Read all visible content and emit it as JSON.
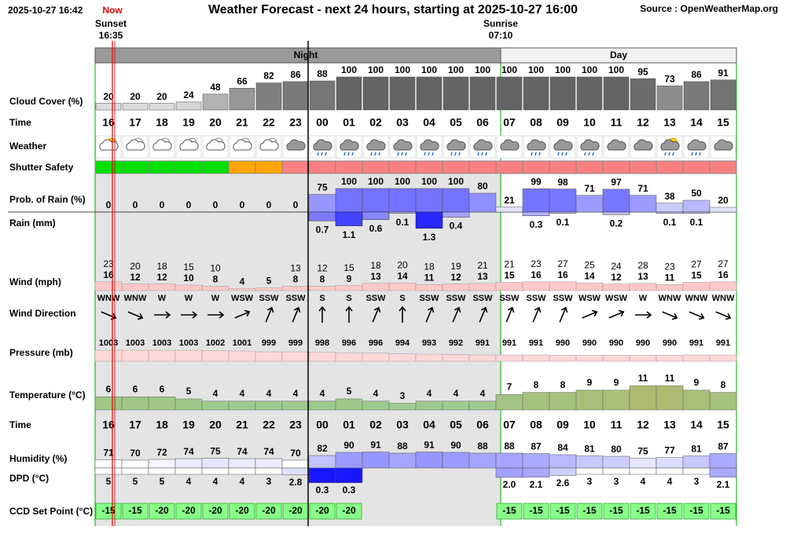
{
  "header": {
    "timestamp": "2025-10-27 16:42",
    "now": "Now",
    "title": "Weather Forecast - next 24 hours, starting at 2025-10-27 16:00",
    "source": "Source : OpenWeatherMap.org"
  },
  "sun": {
    "sunset_label": "Sunset",
    "sunset_time": "16:35",
    "sunrise_label": "Sunrise",
    "sunrise_time": "07:10"
  },
  "periods": [
    {
      "label": "Night"
    },
    {
      "label": "Day"
    }
  ],
  "hours": [
    "16",
    "17",
    "18",
    "19",
    "20",
    "21",
    "22",
    "23",
    "00",
    "01",
    "02",
    "03",
    "04",
    "05",
    "06",
    "07",
    "08",
    "09",
    "10",
    "11",
    "12",
    "13",
    "14",
    "15"
  ],
  "rows": {
    "cloud_cover": {
      "label": "Cloud Cover (%)",
      "values": [
        20,
        20,
        20,
        24,
        48,
        66,
        82,
        86,
        88,
        100,
        100,
        100,
        100,
        100,
        100,
        100,
        100,
        100,
        100,
        100,
        95,
        73,
        86,
        91
      ]
    },
    "time": {
      "label": "Time"
    },
    "weather": {
      "label": "Weather"
    },
    "shutter_safety": {
      "label": "Shutter Safety",
      "colors": [
        "#00e000",
        "#00e000",
        "#00e000",
        "#00e000",
        "#00e000",
        "#ffa500",
        "#ffa500",
        "#f88080",
        "#f88080",
        "#f88080",
        "#f88080",
        "#f88080",
        "#f88080",
        "#f88080",
        "#f88080",
        "#f88080",
        "#f88080",
        "#f88080",
        "#f88080",
        "#f88080",
        "#f88080",
        "#f88080",
        "#f88080",
        "#f88080"
      ]
    },
    "rain_probability": {
      "label": "Prob. of Rain (%)",
      "values": [
        0,
        0,
        0,
        0,
        0,
        0,
        0,
        0,
        75,
        100,
        100,
        100,
        100,
        100,
        80,
        21,
        99,
        98,
        71,
        97,
        71,
        38,
        50,
        20
      ]
    },
    "rain": {
      "label": "Rain (mm)",
      "values": [
        null,
        null,
        null,
        null,
        null,
        null,
        null,
        null,
        0.7,
        1.1,
        0.6,
        0.1,
        1.3,
        0.4,
        null,
        null,
        0.3,
        0.1,
        null,
        0.2,
        null,
        0.1,
        0.1,
        null
      ]
    },
    "wind": {
      "label": "Wind (mph)",
      "gusts": [
        23,
        20,
        18,
        15,
        10,
        null,
        null,
        13,
        12,
        15,
        18,
        20,
        18,
        19,
        21,
        21,
        23,
        27,
        25,
        24,
        28,
        23,
        27,
        27
      ],
      "speeds": [
        16,
        12,
        12,
        10,
        8,
        4,
        5,
        8,
        8,
        9,
        13,
        14,
        11,
        12,
        13,
        15,
        16,
        16,
        14,
        12,
        13,
        11,
        15,
        16
      ]
    },
    "wind_direction": {
      "label": "Wind Direction",
      "values": [
        "WNW",
        "WNW",
        "W",
        "W",
        "W",
        "WSW",
        "SSW",
        "SSW",
        "S",
        "S",
        "SSW",
        "S",
        "SSW",
        "SSW",
        "SSW",
        "SSW",
        "SSW",
        "SSW",
        "WSW",
        "WSW",
        "W",
        "WNW",
        "WNW",
        "WNW"
      ]
    },
    "pressure": {
      "label": "Pressure (mb)",
      "values": [
        1003,
        1003,
        1003,
        1003,
        1002,
        1001,
        999,
        999,
        998,
        996,
        996,
        994,
        993,
        992,
        991,
        991,
        991,
        990,
        990,
        990,
        990,
        990,
        991,
        991
      ]
    },
    "temperature": {
      "label": "Temperature (°C)",
      "values": [
        6,
        6,
        6,
        5,
        4,
        4,
        4,
        4,
        4,
        5,
        4,
        3,
        4,
        4,
        4,
        7,
        8,
        8,
        9,
        9,
        11,
        11,
        9,
        8
      ]
    },
    "humidity": {
      "label": "Humidity (%)",
      "values": [
        71,
        70,
        72,
        74,
        75,
        74,
        74,
        70,
        82,
        90,
        91,
        88,
        91,
        90,
        88,
        88,
        87,
        84,
        81,
        80,
        75,
        77,
        81,
        87
      ]
    },
    "dpd": {
      "label": "DPD (°C)",
      "values": [
        5,
        5,
        5,
        4,
        4,
        4,
        3,
        2.8,
        0.3,
        0.3,
        null,
        null,
        null,
        null,
        null,
        2,
        2.1,
        2.6,
        3,
        3,
        4,
        4,
        3,
        2.1
      ],
      "value_labels": [
        "5",
        "5",
        "5",
        "4",
        "4",
        "4",
        "3",
        "2.8",
        "0.3",
        "0.3",
        null,
        null,
        null,
        null,
        null,
        "2.0",
        "2.1",
        "2.6",
        "3",
        "3",
        "4",
        "4",
        "3",
        "2.1"
      ]
    },
    "ccd_set_point": {
      "label": "CCD Set Point (°C)",
      "values": [
        -15,
        -15,
        -20,
        -20,
        -20,
        -20,
        -20,
        -20,
        -20,
        -20,
        null,
        null,
        null,
        null,
        null,
        -15,
        -15,
        -15,
        -15,
        -15,
        -15,
        -15,
        -15,
        -15
      ]
    }
  }
}
